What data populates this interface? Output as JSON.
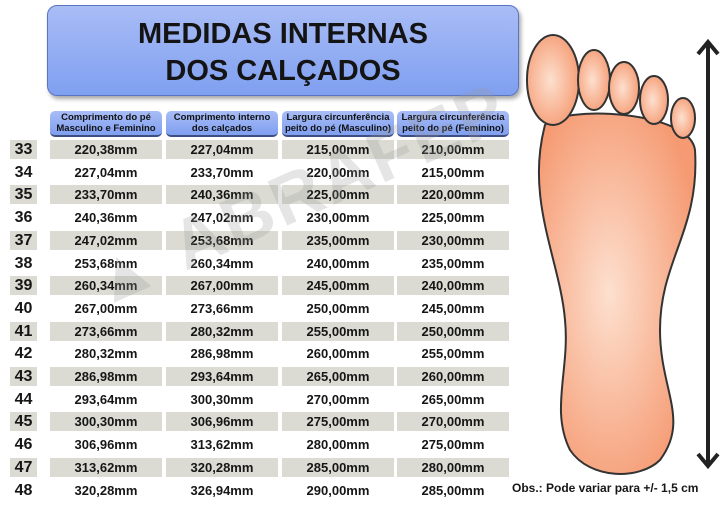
{
  "title": {
    "line1": "MEDIDAS INTERNAS",
    "line2": "DOS CALÇADOS"
  },
  "headers": [
    {
      "line1": "Comprimento do pé",
      "line2": "Masculino e Feminino"
    },
    {
      "line1": "Comprimento interno",
      "line2": "dos calçados"
    },
    {
      "line1": "Largura circunferência",
      "line2": "peito do pé (Masculino)"
    },
    {
      "line1": "Largura circunferência",
      "line2": "peito do pé (Feminino)"
    }
  ],
  "rows": [
    {
      "size": "33",
      "c1": "220,38mm",
      "c2": "227,04mm",
      "c3": "215,00mm",
      "c4": "210,00mm"
    },
    {
      "size": "34",
      "c1": "227,04mm",
      "c2": "233,70mm",
      "c3": "220,00mm",
      "c4": "215,00mm"
    },
    {
      "size": "35",
      "c1": "233,70mm",
      "c2": "240,36mm",
      "c3": "225,00mm",
      "c4": "220,00mm"
    },
    {
      "size": "36",
      "c1": "240,36mm",
      "c2": "247,02mm",
      "c3": "230,00mm",
      "c4": "225,00mm"
    },
    {
      "size": "37",
      "c1": "247,02mm",
      "c2": "253,68mm",
      "c3": "235,00mm",
      "c4": "230,00mm"
    },
    {
      "size": "38",
      "c1": "253,68mm",
      "c2": "260,34mm",
      "c3": "240,00mm",
      "c4": "235,00mm"
    },
    {
      "size": "39",
      "c1": "260,34mm",
      "c2": "267,00mm",
      "c3": "245,00mm",
      "c4": "240,00mm"
    },
    {
      "size": "40",
      "c1": "267,00mm",
      "c2": "273,66mm",
      "c3": "250,00mm",
      "c4": "245,00mm"
    },
    {
      "size": "41",
      "c1": "273,66mm",
      "c2": "280,32mm",
      "c3": "255,00mm",
      "c4": "250,00mm"
    },
    {
      "size": "42",
      "c1": "280,32mm",
      "c2": "286,98mm",
      "c3": "260,00mm",
      "c4": "255,00mm"
    },
    {
      "size": "43",
      "c1": "286,98mm",
      "c2": "293,64mm",
      "c3": "265,00mm",
      "c4": "260,00mm"
    },
    {
      "size": "44",
      "c1": "293,64mm",
      "c2": "300,30mm",
      "c3": "270,00mm",
      "c4": "265,00mm"
    },
    {
      "size": "45",
      "c1": "300,30mm",
      "c2": "306,96mm",
      "c3": "275,00mm",
      "c4": "270,00mm"
    },
    {
      "size": "46",
      "c1": "306,96mm",
      "c2": "313,62mm",
      "c3": "280,00mm",
      "c4": "275,00mm"
    },
    {
      "size": "47",
      "c1": "313,62mm",
      "c2": "320,28mm",
      "c3": "285,00mm",
      "c4": "280,00mm"
    },
    {
      "size": "48",
      "c1": "320,28mm",
      "c2": "326,94mm",
      "c3": "290,00mm",
      "c4": "285,00mm"
    }
  ],
  "note": "Obs.: Pode variar para +/- 1,5 cm",
  "watermark": "ABRAFEP",
  "colors": {
    "header_blue": "#8aa8f0",
    "row_shade": "#dbdbd3",
    "foot": "#f8a27e"
  }
}
